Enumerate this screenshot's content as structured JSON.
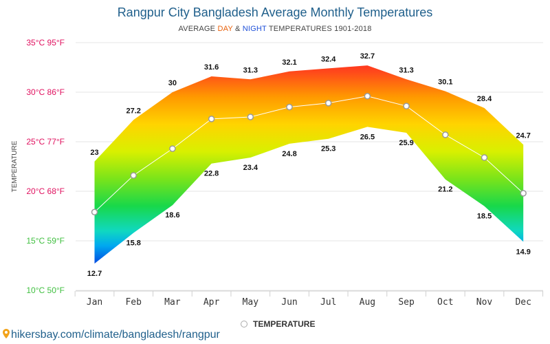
{
  "header": {
    "title": "Rangpur City Bangladesh Average Monthly Temperatures",
    "subtitle_prefix": "AVERAGE ",
    "subtitle_day": "DAY",
    "subtitle_amp": " & ",
    "subtitle_night": "NIGHT",
    "subtitle_suffix": " TEMPERATURES 1901-2018"
  },
  "footer": {
    "url": "hikersbay.com/climate/bangladesh/rangpur"
  },
  "legend": {
    "label": "TEMPERATURE"
  },
  "colors": {
    "title": "#1f5f8b",
    "day": "#e8600a",
    "night": "#1d4fd8",
    "axis_hot": "#e0115f",
    "axis_cold": "#3fbf3f"
  },
  "chart_data": {
    "type": "area",
    "ylabel": "TEMPERATURE",
    "ylim": [
      10,
      35
    ],
    "grid": true,
    "legend_position": "bottom-center",
    "categories": [
      "Jan",
      "Feb",
      "Mar",
      "Apr",
      "May",
      "Jun",
      "Jul",
      "Aug",
      "Sep",
      "Oct",
      "Nov",
      "Dec"
    ],
    "y_ticks": [
      {
        "value": 35,
        "label": "35°C 95°F"
      },
      {
        "value": 30,
        "label": "30°C 86°F"
      },
      {
        "value": 25,
        "label": "25°C 77°F"
      },
      {
        "value": 20,
        "label": "20°C 68°F"
      },
      {
        "value": 15,
        "label": "15°C 59°F"
      },
      {
        "value": 10,
        "label": "10°C 50°F"
      }
    ],
    "series": [
      {
        "name": "DAY",
        "values": [
          23,
          27.2,
          30,
          31.6,
          31.3,
          32.1,
          32.4,
          32.7,
          31.3,
          30.1,
          28.4,
          24.7
        ]
      },
      {
        "name": "NIGHT",
        "values": [
          12.7,
          15.8,
          18.6,
          22.8,
          23.4,
          24.8,
          25.3,
          26.5,
          25.9,
          21.2,
          18.5,
          14.9
        ]
      },
      {
        "name": "TEMPERATURE",
        "values": [
          17.9,
          21.6,
          24.3,
          27.3,
          27.5,
          28.5,
          28.9,
          29.6,
          28.6,
          25.7,
          23.4,
          19.8
        ]
      }
    ]
  }
}
